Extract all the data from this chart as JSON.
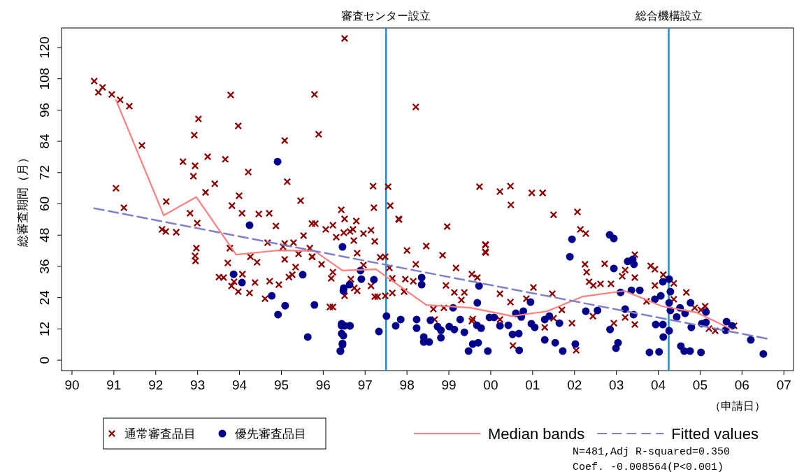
{
  "chart_data": {
    "type": "scatter",
    "xlabel": "（申請日）",
    "ylabel": "総審査期間（月）",
    "xlim": [
      1989.75,
      2007.23
    ],
    "ylim": [
      -4,
      127.5
    ],
    "xticks": [
      {
        "value": 1990,
        "label": "90"
      },
      {
        "value": 1991,
        "label": "91"
      },
      {
        "value": 1992,
        "label": "92"
      },
      {
        "value": 1993,
        "label": "93"
      },
      {
        "value": 1994,
        "label": "94"
      },
      {
        "value": 1995,
        "label": "95"
      },
      {
        "value": 1996,
        "label": "96"
      },
      {
        "value": 1997,
        "label": "97"
      },
      {
        "value": 1998,
        "label": "98"
      },
      {
        "value": 1999,
        "label": "99"
      },
      {
        "value": 2000,
        "label": "00"
      },
      {
        "value": 2001,
        "label": "01"
      },
      {
        "value": 2002,
        "label": "02"
      },
      {
        "value": 2003,
        "label": "03"
      },
      {
        "value": 2004,
        "label": "04"
      },
      {
        "value": 2005,
        "label": "05"
      },
      {
        "value": 2006,
        "label": "06"
      },
      {
        "value": 2007,
        "label": "07"
      }
    ],
    "yticks": [
      0,
      12,
      24,
      36,
      48,
      60,
      72,
      84,
      96,
      108,
      120
    ],
    "grid": false,
    "legend": "bottom",
    "ref_lines": [
      {
        "axis": "x",
        "value": 1997.5,
        "label": "審査センター設立",
        "color": "#1e8fc8"
      },
      {
        "axis": "x",
        "value": 2004.25,
        "label": "総合機構設立",
        "color": "#1e8fc8"
      }
    ],
    "annotations": [
      "N=481,Adj R-squared=0.350",
      "Coef. -0.008564(P<0.001)"
    ],
    "series": [
      {
        "name": "通常審査品目",
        "marker": "cross",
        "color": "#8b0000",
        "x": [
          1990.53,
          1990.63,
          1990.73,
          1990.95,
          1991.15,
          1991.37,
          1991.05,
          1991.24,
          1991.67,
          1992.25,
          1992.15,
          1992.24,
          1992.49,
          1992.65,
          1992.82,
          1992.9,
          1992.92,
          1992.94,
          1992.94,
          1992.95,
          1992.99,
          1992.97,
          1993.02,
          1993.19,
          1993.24,
          1993.41,
          1993.51,
          1993.62,
          1993.66,
          1993.77,
          1993.79,
          1993.81,
          1993.82,
          1993.97,
          1993.99,
          1994.06,
          1994.21,
          1994.26,
          1994.46,
          1994.71,
          1994.72,
          1994.87,
          1995.04,
          1995.08,
          1995.14,
          1995.08,
          1995.26,
          1995.29,
          1995.34,
          1995.46,
          1995.81,
          1995.79,
          1995.89,
          1996.06,
          1996.19,
          1996.23,
          1996.43,
          1996.51,
          1996.49,
          1996.71,
          1996.79,
          1996.74,
          1996.96,
          1997.19,
          1997.21,
          1997.36,
          1997.3,
          1997.55,
          1997.6,
          1997.8,
          1997.96,
          1998.15,
          1998.21,
          1998.46,
          1998.66,
          1998.85,
          1998.96,
          1999.17,
          1999.3,
          1999.57,
          1999.73,
          2000.22,
          2000.47,
          2000.48,
          2000.98,
          2001.24,
          1999.87,
          1999.87,
          2000.53,
          2001.5,
          2002.07,
          2002.14,
          2002.27,
          2002.25,
          2002.29,
          2002.72,
          2002.35,
          2002.45,
          2002.62,
          2002.87,
          2003.14,
          2003.21,
          2003.44,
          2003.44,
          2003.82,
          2003.92,
          2004.12,
          2004.37,
          2004.67,
          2005.12,
          2005.21,
          2003.44,
          2002.04,
          2001.94,
          2002.94,
          2003.21,
          2002.44,
          2003.92,
          2003.72,
          2004.37,
          2004.87,
          1998.21,
          1998.93,
          1999.13,
          1999.37,
          1999.55,
          1999.68,
          1999.88,
          1999.88,
          2000.22,
          2000.47,
          2000.85,
          2001.02,
          2001.47,
          1998.63,
          1998.88,
          1999.55,
          2000.22,
          2001.29,
          2001.7,
          2001.5,
          1998.0,
          1997.93,
          1997.65,
          1996.23,
          1996.31,
          1996.51,
          1996.64,
          1996.73,
          1996.81,
          1996.96,
          1997.14,
          1997.23,
          1997.14,
          1997.23,
          1996.81,
          1996.51,
          1997.48,
          1997.48,
          1997.58,
          1997.65,
          1997.81,
          1996.23,
          1996.66,
          1995.96,
          1995.73,
          1996.16,
          1993.72,
          1993.87,
          1993.97,
          1994.07,
          1994.24,
          1994.37,
          1994.61,
          1994.42,
          1994.67,
          1994.94,
          1995.18,
          1995.53,
          1995.73,
          1995.74,
          1995.68,
          1995.41,
          1995.08,
          2005.36,
          2005.81,
          2005.02
        ],
        "values": [
          107.1,
          102.8,
          104.7,
          102.0,
          99.9,
          97.5,
          66.0,
          58.5,
          82.4,
          60.9,
          50.2,
          49.4,
          49.1,
          76.2,
          56.4,
          70.6,
          86.4,
          74.6,
          40.0,
          38.1,
          52.6,
          43.0,
          92.6,
          64.4,
          78.1,
          67.7,
          31.9,
          31.7,
          77.1,
          43.0,
          101.8,
          28.5,
          59.3,
          89.9,
          63.1,
          56.4,
          72.2,
          39.7,
          56.1,
          56.4,
          30.3,
          51.5,
          43.5,
          84.3,
          68.5,
          38.7,
          32.8,
          45.1,
          35.7,
          61.2,
          52.4,
          102.0,
          86.7,
          50.2,
          31.4,
          20.4,
          57.7,
          123.5,
          48.9,
          50.2,
          53.4,
          27.7,
          36.5,
          66.8,
          58.5,
          39.5,
          24.4,
          66.6,
          59.3,
          54.2,
          31.1,
          30.3,
          97.2,
          43.8,
          15.6,
          40.3,
          51.3,
          35.4,
          23.1,
          15.8,
          66.6,
          64.7,
          66.8,
          59.6,
          64.2,
          64.2,
          44.3,
          41.6,
          5.6,
          55.8,
          56.9,
          50.2,
          48.6,
          36.8,
          33.8,
          37.0,
          30.1,
          28.7,
          29.3,
          29.3,
          32.2,
          34.6,
          40.5,
          31.7,
          36.2,
          34.9,
          32.8,
          29.5,
          26.0,
          20.7,
          12.1,
          13.7,
          3.8,
          14.2,
          14.2,
          16.4,
          16.9,
          28.7,
          22.6,
          23.4,
          20.1,
          36.8,
          28.7,
          26.0,
          26.0,
          33.0,
          31.7,
          44.3,
          41.3,
          25.5,
          22.3,
          23.6,
          27.9,
          25.5,
          19.6,
          20.1,
          15.0,
          15.6,
          12.6,
          19.3,
          16.1,
          42.1,
          26.3,
          25.8,
          51.8,
          47.2,
          54.2,
          49.4,
          45.9,
          41.1,
          48.6,
          49.9,
          45.6,
          28.5,
          24.4,
          26.6,
          24.7,
          39.7,
          24.7,
          35.4,
          31.4,
          54.0,
          33.8,
          31.1,
          36.8,
          39.7,
          20.4,
          37.3,
          30.1,
          26.3,
          33.0,
          25.8,
          29.8,
          23.6,
          37.6,
          45.1,
          29.0,
          31.9,
          47.8,
          52.4,
          39.7,
          43.0,
          40.8,
          44.8,
          11.3,
          13.2,
          19.3
        ]
      },
      {
        "name": "優先審査品目",
        "marker": "circle",
        "color": "#00008b",
        "x": [
          1994.91,
          1993.86,
          1994.06,
          1994.24,
          1994.92,
          1995.09,
          1995.79,
          1996.46,
          1996.48,
          1996.44,
          1996.48,
          1996.46,
          1996.41,
          1996.63,
          1996.49,
          1996.63,
          1996.89,
          1996.91,
          1997.21,
          1995.63,
          1997.51,
          1997.33,
          1997.73,
          1997.85,
          1998.23,
          1998.23,
          1998.4,
          1998.4,
          1998.53,
          1998.56,
          1998.73,
          1998.81,
          1998.81,
          1999.01,
          1999.13,
          1999.1,
          1999.27,
          1999.37,
          1999.47,
          1999.57,
          1999.7,
          1999.72,
          1999.68,
          1999.67,
          1999.77,
          1999.93,
          1999.97,
          2000.08,
          2000.22,
          2000.42,
          2000.52,
          2000.67,
          2000.68,
          2000.6,
          2000.73,
          2000.78,
          2000.95,
          2000.97,
          2001.05,
          2001.29,
          2001.29,
          2001.4,
          2001.54,
          2001.64,
          2001.72,
          1996.44,
          1996.51,
          1996.64,
          1996.44,
          1996.46,
          1996.41,
          1998.35,
          1998.35,
          2001.94,
          2001.89,
          2002.84,
          2002.94,
          2002.94,
          2002.02,
          2002.27,
          2002.55,
          2002.85,
          2003.04,
          2002.99,
          2003.21,
          2003.1,
          2003.27,
          2003.39,
          2003.42,
          2003.36,
          2003.56,
          2003.41,
          2003.79,
          2004.02,
          2003.94,
          2004.11,
          2004.12,
          2004.26,
          2004.11,
          2004.26,
          2004.29,
          2003.92,
          2004.06,
          2004.26,
          2004.29,
          2004.44,
          2004.52,
          2004.64,
          2004.77,
          2004.79,
          2004.54,
          2004.62,
          2004.76,
          2005.02,
          2005.04,
          2005.14,
          2005.14,
          2005.63,
          2005.76,
          2005.61,
          2006.21,
          2006.51,
          1995.51,
          1994.77
        ],
        "values": [
          76.2,
          33.0,
          29.8,
          51.8,
          17.5,
          20.9,
          21.2,
          43.5,
          26.6,
          13.2,
          9.4,
          6.4,
          3.5,
          13.2,
          27.7,
          29.0,
          34.4,
          31.1,
          30.9,
          8.9,
          16.9,
          11.0,
          13.2,
          15.6,
          15.6,
          12.3,
          8.9,
          7.0,
          7.0,
          15.3,
          12.9,
          11.5,
          8.6,
          12.9,
          11.8,
          20.1,
          15.6,
          10.7,
          3.5,
          6.2,
          6.7,
          28.5,
          22.0,
          13.4,
          12.3,
          3.5,
          16.4,
          16.4,
          13.2,
          13.4,
          9.9,
          10.2,
          3.8,
          18.0,
          16.6,
          18.8,
          22.3,
          14.0,
          12.6,
          15.6,
          7.8,
          16.9,
          6.7,
          14.2,
          3.5,
          14.0,
          13.2,
          13.2,
          10.2,
          5.9,
          3.5,
          31.7,
          29.0,
          46.4,
          39.7,
          48.1,
          46.7,
          35.2,
          6.2,
          18.8,
          19.1,
          11.8,
          6.7,
          4.6,
          19.6,
          26.0,
          37.9,
          38.7,
          36.8,
          26.8,
          26.8,
          17.5,
          3.0,
          3.2,
          13.7,
          13.7,
          8.9,
          11.3,
          30.1,
          31.1,
          26.3,
          23.4,
          24.7,
          22.0,
          19.1,
          16.6,
          20.1,
          18.0,
          22.0,
          12.6,
          5.4,
          3.5,
          3.5,
          3.0,
          14.0,
          18.5,
          14.5,
          14.8,
          13.2,
          11.5,
          7.8,
          2.4,
          32.8,
          24.7
        ]
      },
      {
        "name": "Median bands",
        "type": "line",
        "marker": "none",
        "line_style": "solid",
        "color": "#ff7f7f",
        "x": [
          1991.05,
          1992.19,
          1992.97,
          1993.92,
          1994.89,
          1995.79,
          1996.46,
          1997.26,
          1998.46,
          1999.52,
          2000.52,
          2001.35,
          2002.19,
          2003.19,
          2004.09,
          2004.92,
          2005.76
        ],
        "values": [
          99.9,
          55.6,
          62.6,
          40.5,
          42.1,
          41.9,
          34.4,
          34.9,
          21.2,
          20.1,
          16.9,
          18.8,
          24.4,
          26.6,
          20.7,
          18.3,
          11.8
        ]
      },
      {
        "name": "Fitted values",
        "type": "line",
        "marker": "none",
        "line_style": "dashed",
        "color": "#8080c8",
        "x": [
          1990.53,
          2006.59
        ],
        "values": [
          58.3,
          8.3
        ]
      }
    ]
  }
}
